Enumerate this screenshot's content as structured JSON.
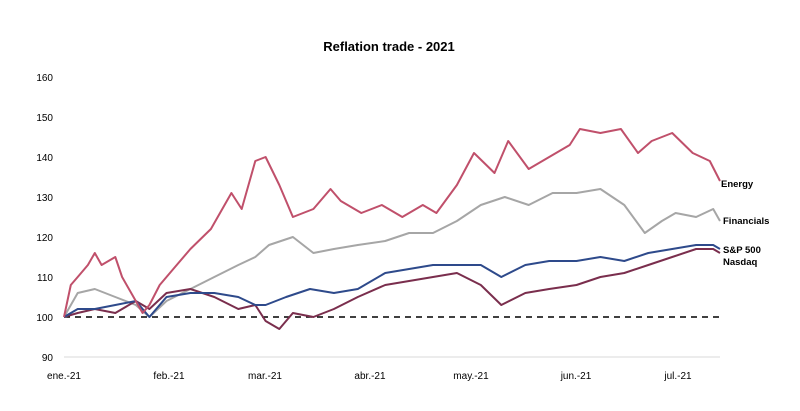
{
  "chart_data": {
    "type": "line",
    "title": "Reflation trade - 2021",
    "xlabel": "",
    "ylabel": "",
    "ylim": [
      90,
      160
    ],
    "yticks": [
      "160",
      "150",
      "140",
      "130",
      "120",
      "110",
      "100",
      "90"
    ],
    "xticks": [
      "ene.-21",
      "feb.-21",
      "mar.-21",
      "abr.-21",
      "may.-21",
      "jun.-21",
      "jul.-21"
    ],
    "reference_line": {
      "value": 100,
      "style": "dashed",
      "color": "#000000"
    },
    "grid": false,
    "series": [
      {
        "name": "Energy",
        "color": "#C0506B",
        "x": [
          "2021-01-04",
          "2021-01-06",
          "2021-01-08",
          "2021-01-11",
          "2021-01-13",
          "2021-01-15",
          "2021-01-19",
          "2021-01-21",
          "2021-01-25",
          "2021-01-27",
          "2021-01-29",
          "2021-02-01",
          "2021-02-05",
          "2021-02-10",
          "2021-02-16",
          "2021-02-22",
          "2021-02-25",
          "2021-03-01",
          "2021-03-04",
          "2021-03-08",
          "2021-03-12",
          "2021-03-18",
          "2021-03-23",
          "2021-03-26",
          "2021-04-01",
          "2021-04-07",
          "2021-04-13",
          "2021-04-19",
          "2021-04-23",
          "2021-04-29",
          "2021-05-04",
          "2021-05-10",
          "2021-05-14",
          "2021-05-20",
          "2021-05-26",
          "2021-06-01",
          "2021-06-04",
          "2021-06-10",
          "2021-06-16",
          "2021-06-21",
          "2021-06-25",
          "2021-07-01",
          "2021-07-07",
          "2021-07-12",
          "2021-07-15"
        ],
        "y": [
          100,
          108,
          110,
          113,
          116,
          113,
          115,
          110,
          104,
          101,
          103,
          108,
          112,
          117,
          122,
          131,
          127,
          139,
          140,
          133,
          125,
          127,
          132,
          129,
          126,
          128,
          125,
          128,
          126,
          133,
          141,
          136,
          144,
          137,
          140,
          143,
          147,
          146,
          147,
          141,
          144,
          146,
          141,
          139,
          134
        ]
      },
      {
        "name": "Financials",
        "color": "#A6A6A6",
        "x": [
          "2021-01-04",
          "2021-01-08",
          "2021-01-13",
          "2021-01-19",
          "2021-01-25",
          "2021-01-29",
          "2021-02-03",
          "2021-02-10",
          "2021-02-17",
          "2021-02-24",
          "2021-03-01",
          "2021-03-05",
          "2021-03-12",
          "2021-03-18",
          "2021-03-24",
          "2021-03-31",
          "2021-04-08",
          "2021-04-15",
          "2021-04-22",
          "2021-04-29",
          "2021-05-06",
          "2021-05-13",
          "2021-05-20",
          "2021-05-27",
          "2021-06-03",
          "2021-06-10",
          "2021-06-17",
          "2021-06-23",
          "2021-06-28",
          "2021-07-02",
          "2021-07-08",
          "2021-07-13",
          "2021-07-15"
        ],
        "y": [
          100,
          106,
          107,
          105,
          103,
          100,
          104,
          107,
          110,
          113,
          115,
          118,
          120,
          116,
          117,
          118,
          119,
          121,
          121,
          124,
          128,
          130,
          128,
          131,
          131,
          132,
          128,
          121,
          124,
          126,
          125,
          127,
          124
        ]
      },
      {
        "name": "S&P 500",
        "color": "#2E4A8B",
        "x": [
          "2021-01-04",
          "2021-01-08",
          "2021-01-13",
          "2021-01-19",
          "2021-01-25",
          "2021-01-29",
          "2021-02-03",
          "2021-02-10",
          "2021-02-17",
          "2021-02-24",
          "2021-03-01",
          "2021-03-04",
          "2021-03-10",
          "2021-03-17",
          "2021-03-24",
          "2021-03-31",
          "2021-04-08",
          "2021-04-15",
          "2021-04-22",
          "2021-04-29",
          "2021-05-06",
          "2021-05-12",
          "2021-05-19",
          "2021-05-26",
          "2021-06-03",
          "2021-06-10",
          "2021-06-17",
          "2021-06-24",
          "2021-07-01",
          "2021-07-08",
          "2021-07-13",
          "2021-07-15"
        ],
        "y": [
          100,
          102,
          102,
          103,
          104,
          100,
          105,
          106,
          106,
          105,
          103,
          103,
          105,
          107,
          106,
          107,
          111,
          112,
          113,
          113,
          113,
          110,
          113,
          114,
          114,
          115,
          114,
          116,
          117,
          118,
          118,
          117
        ]
      },
      {
        "name": "Nasdaq",
        "color": "#7A2E4D",
        "x": [
          "2021-01-04",
          "2021-01-08",
          "2021-01-13",
          "2021-01-19",
          "2021-01-25",
          "2021-01-29",
          "2021-02-03",
          "2021-02-10",
          "2021-02-17",
          "2021-02-24",
          "2021-03-01",
          "2021-03-04",
          "2021-03-08",
          "2021-03-12",
          "2021-03-18",
          "2021-03-24",
          "2021-03-31",
          "2021-04-08",
          "2021-04-15",
          "2021-04-22",
          "2021-04-29",
          "2021-05-06",
          "2021-05-12",
          "2021-05-19",
          "2021-05-26",
          "2021-06-03",
          "2021-06-10",
          "2021-06-17",
          "2021-06-24",
          "2021-07-01",
          "2021-07-08",
          "2021-07-13",
          "2021-07-15"
        ],
        "y": [
          100,
          101,
          102,
          101,
          104,
          102,
          106,
          107,
          105,
          102,
          103,
          99,
          97,
          101,
          100,
          102,
          105,
          108,
          109,
          110,
          111,
          108,
          103,
          106,
          107,
          108,
          110,
          111,
          113,
          115,
          117,
          117,
          116
        ]
      }
    ]
  }
}
